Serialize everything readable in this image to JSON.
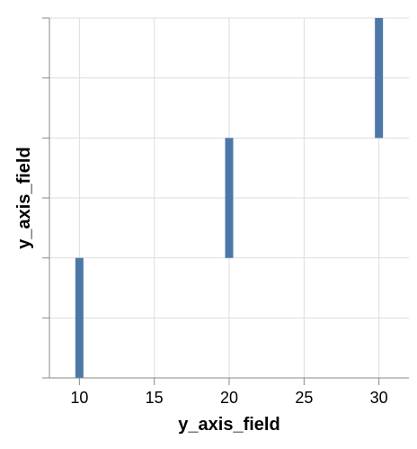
{
  "chart_data": {
    "type": "bar",
    "orientation": "vertical",
    "xlabel": "y_axis_field",
    "ylabel": "y_axis_field",
    "xlim": [
      8,
      32
    ],
    "ylim": [
      0,
      30
    ],
    "x_ticks": [
      10,
      15,
      20,
      25,
      30
    ],
    "x_tick_labels": [
      "10",
      "15",
      "20",
      "25",
      "30"
    ],
    "y_ticks": [
      0,
      5,
      10,
      15,
      20,
      25,
      30
    ],
    "y_tick_labels_shown": false,
    "grid": true,
    "legend": "none",
    "bars": [
      {
        "x": 10,
        "y_start": 0,
        "y_end": 10
      },
      {
        "x": 20,
        "y_start": 10,
        "y_end": 20
      },
      {
        "x": 30,
        "y_start": 20,
        "y_end": 30
      }
    ],
    "colors": {
      "bar": "#4c78a8",
      "grid": "#dddddd",
      "axis": "#888888"
    }
  }
}
